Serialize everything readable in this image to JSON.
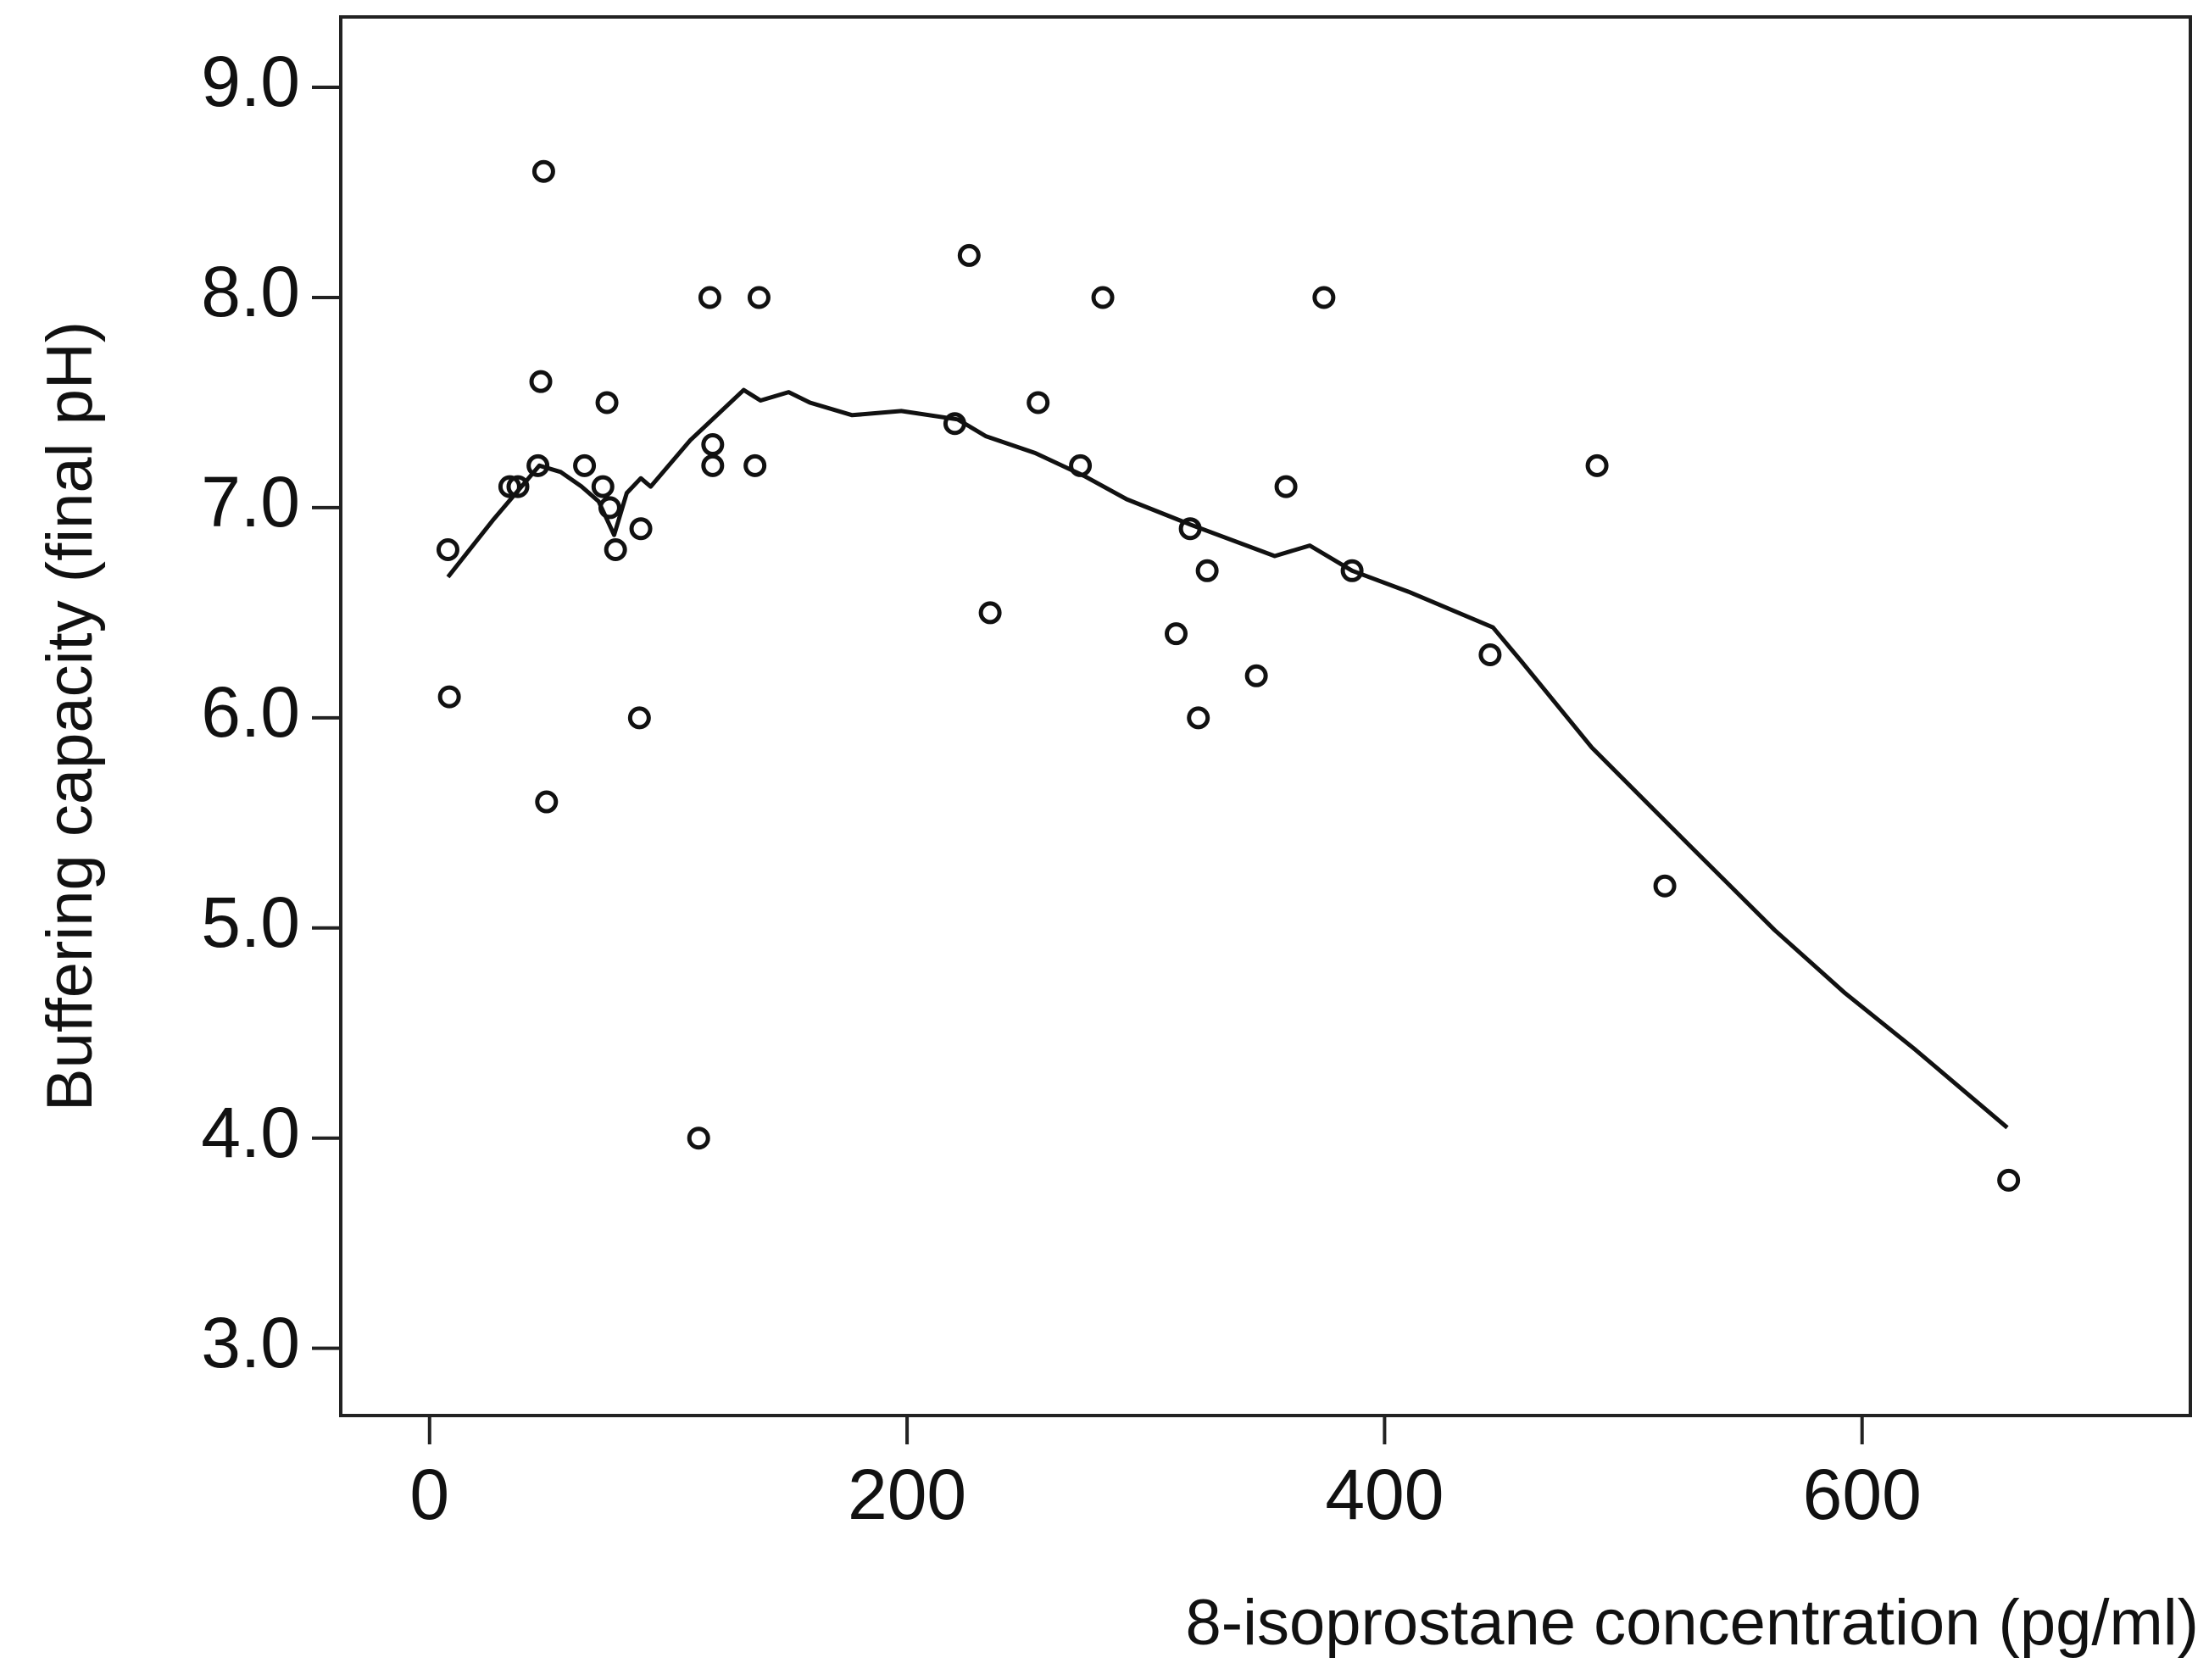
{
  "chart_data": {
    "type": "scatter",
    "xlabel": "8-isoprostane concentration (pg/ml)",
    "ylabel": "Buffering capacity (final pH)",
    "xlim": [
      -37.2,
      737.5
    ],
    "ylim": [
      2.68,
      9.335
    ],
    "xticks": [
      0,
      200,
      400,
      600
    ],
    "yticks": [
      {
        "value": 3,
        "label": "3.0"
      },
      {
        "value": 4,
        "label": "4.0"
      },
      {
        "value": 5,
        "label": "5.0"
      },
      {
        "value": 6,
        "label": "6.0"
      },
      {
        "value": 7,
        "label": "7.0"
      },
      {
        "value": 8,
        "label": "8.0"
      },
      {
        "value": 9,
        "label": "9.0"
      }
    ],
    "grid": false,
    "series": [
      {
        "mode": "markers",
        "color": "#111111",
        "x": [
          7.7,
          8.3,
          33.6,
          37,
          47.8,
          46.6,
          45.4,
          49,
          64.9,
          72.6,
          74.3,
          75.5,
          77.9,
          88.5,
          87.9,
          112.7,
          117.4,
          118.6,
          118.6,
          136.3,
          138,
          220,
          226,
          234.8,
          254.9,
          272.6,
          282,
          312.7,
          318.6,
          322,
          325.7,
          346.3,
          358.7,
          374.6,
          386.4,
          444.2,
          489,
          517.4,
          661.4
        ],
        "y": [
          6.8,
          6.1,
          7.1,
          7.1,
          8.6,
          7.6,
          7.2,
          5.6,
          7.2,
          7.1,
          7.5,
          7.0,
          6.8,
          6.9,
          6.0,
          4.0,
          8.0,
          7.3,
          7.2,
          7.2,
          8.0,
          7.4,
          8.2,
          6.5,
          7.5,
          7.2,
          8.0,
          6.4,
          6.9,
          6.0,
          6.7,
          6.2,
          7.1,
          8.0,
          6.7,
          6.3,
          7.2,
          5.2,
          3.8
        ]
      },
      {
        "mode": "line",
        "color": "#111111",
        "x": [
          7.7,
          26.5,
          46.0,
          54.9,
          63.7,
          70.8,
          77.3,
          82.6,
          88.5,
          92.6,
          109.1,
          131.6,
          138.6,
          150.4,
          159.3,
          177,
          197.6,
          221.2,
          233,
          253.7,
          274.3,
          292,
          318.6,
          354,
          368.7,
          386.4,
          410,
          445.4,
          457.2,
          486.7,
          528,
          563.4,
          592.9,
          622.4,
          660.8
        ],
        "y": [
          6.67,
          6.94,
          7.2,
          7.17,
          7.1,
          7.03,
          6.87,
          7.07,
          7.14,
          7.1,
          7.32,
          7.56,
          7.51,
          7.55,
          7.5,
          7.44,
          7.46,
          7.42,
          7.34,
          7.26,
          7.15,
          7.04,
          6.92,
          6.77,
          6.82,
          6.7,
          6.6,
          6.43,
          6.27,
          5.86,
          5.39,
          4.99,
          4.69,
          4.42,
          4.05
        ]
      }
    ]
  }
}
